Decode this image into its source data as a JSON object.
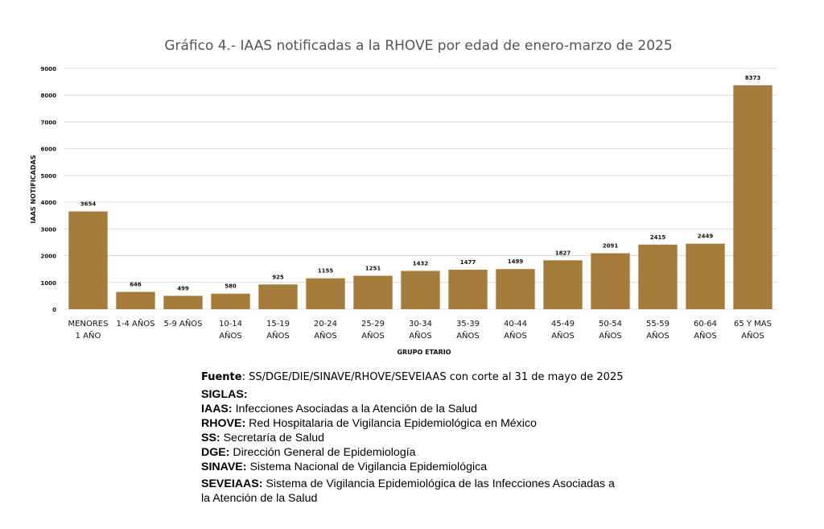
{
  "chart_data": {
    "type": "bar",
    "title": "Gráfico 4.- IAAS notificadas a la RHOVE por edad de enero-marzo de 2025",
    "xlabel": "GRUPO ETARIO",
    "ylabel": "IAAS NOTIFICADAS",
    "ylim": [
      0,
      9000
    ],
    "yticks": [
      0,
      1000,
      2000,
      3000,
      4000,
      5000,
      6000,
      7000,
      8000,
      9000
    ],
    "grid": true,
    "legend": "none",
    "bar_color": "#A67C3D",
    "categories": [
      [
        "MENORES",
        "1 AÑO"
      ],
      [
        "1-4 AÑOS"
      ],
      [
        "5-9 AÑOS"
      ],
      [
        "10-14",
        "AÑOS"
      ],
      [
        "15-19",
        "AÑOS"
      ],
      [
        "20-24",
        "AÑOS"
      ],
      [
        "25-29",
        "AÑOS"
      ],
      [
        "30-34",
        "AÑOS"
      ],
      [
        "35-39",
        "AÑOS"
      ],
      [
        "40-44",
        "AÑOS"
      ],
      [
        "45-49",
        "AÑOS"
      ],
      [
        "50-54",
        "AÑOS"
      ],
      [
        "55-59",
        "AÑOS"
      ],
      [
        "60-64",
        "AÑOS"
      ],
      [
        "65 Y MAS",
        "AÑOS"
      ]
    ],
    "values": [
      3654,
      646,
      499,
      580,
      925,
      1155,
      1251,
      1432,
      1477,
      1499,
      1827,
      2091,
      2415,
      2449,
      8373
    ]
  },
  "notes": {
    "fuente_label": "Fuente",
    "fuente_text": ": SS/DGE/DIE/SINAVE/RHOVE/SEVEIAAS con corte al 31 de mayo de 2025",
    "siglas_title": "SIGLAS:",
    "siglas": [
      {
        "abbr": "IAAS:",
        "desc": " Infecciones Asociadas a la Atención de la Salud"
      },
      {
        "abbr": "RHOVE:",
        "desc": " Red Hospitalaria de Vigilancia Epidemiológica en México"
      },
      {
        "abbr": "SS:",
        "desc": " Secretaría de Salud"
      },
      {
        "abbr": "DGE:",
        "desc": " Dirección General de Epidemiología"
      },
      {
        "abbr": "SINAVE:",
        "desc": " Sistema Nacional de Vigilancia Epidemiológica"
      }
    ],
    "last_abbr": "SEVEIAAS:",
    "last_desc_1": " Sistema de Vigilancia Epidemiológica de las Infecciones Asociadas a",
    "last_desc_2": "la Atención de la Salud"
  }
}
